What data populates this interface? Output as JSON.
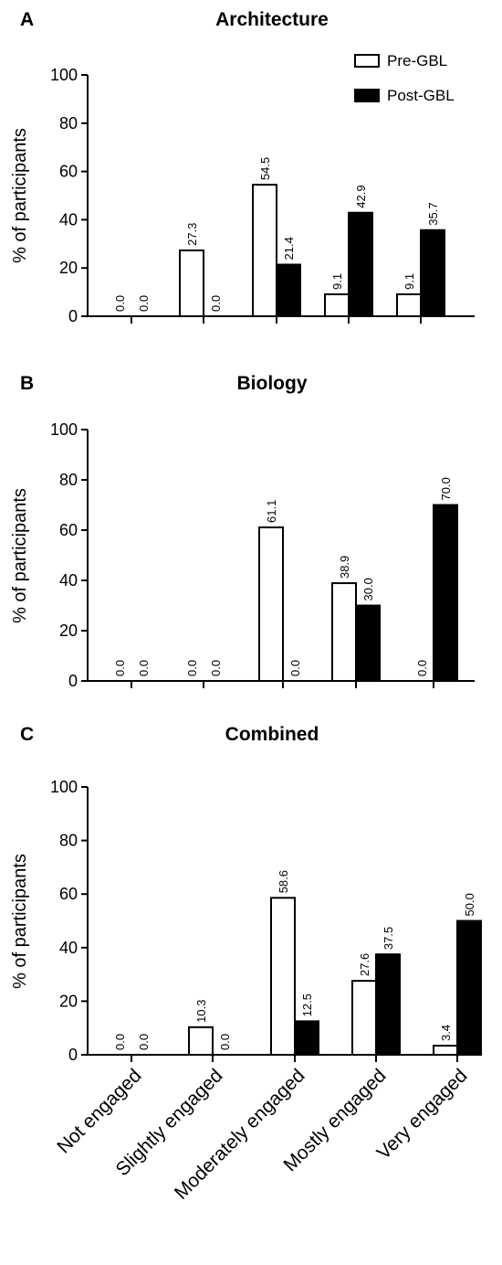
{
  "legend": {
    "series": [
      "Pre-GBL",
      "Post-GBL"
    ],
    "colors": [
      "#ffffff",
      "#000000"
    ],
    "placement": "top-right of panel A"
  },
  "chart_data": [
    {
      "panel": "A",
      "type": "bar",
      "title": "Architecture",
      "ylabel": "% of participants",
      "ylim": [
        0,
        100
      ],
      "yticks": [
        0,
        20,
        40,
        60,
        80,
        100
      ],
      "categories": [
        "Not engaged",
        "Slightly engaged",
        "Moderately engaged",
        "Mostly engaged",
        "Very engaged"
      ],
      "series": [
        {
          "name": "Pre-GBL",
          "values": [
            0.0,
            27.3,
            54.5,
            9.1,
            9.1
          ],
          "labels": [
            "0.0",
            "27.3",
            "54.5",
            "9.1",
            "9.1"
          ]
        },
        {
          "name": "Post-GBL",
          "values": [
            0.0,
            0.0,
            21.4,
            42.9,
            35.7
          ],
          "labels": [
            "0.0",
            "0.0",
            "21.4",
            "42.9",
            "35.7"
          ]
        }
      ]
    },
    {
      "panel": "B",
      "type": "bar",
      "title": "Biology",
      "ylabel": "% of participants",
      "ylim": [
        0,
        100
      ],
      "yticks": [
        0,
        20,
        40,
        60,
        80,
        100
      ],
      "categories": [
        "Not engaged",
        "Slightly engaged",
        "Moderately engaged",
        "Mostly engaged",
        "Very engaged"
      ],
      "series": [
        {
          "name": "Pre-GBL",
          "values": [
            0.0,
            0.0,
            61.1,
            38.9,
            0.0
          ],
          "labels": [
            "0.0",
            "0.0",
            "61.1",
            "38.9",
            "0.0"
          ]
        },
        {
          "name": "Post-GBL",
          "values": [
            0.0,
            0.0,
            0.0,
            30.0,
            70.0
          ],
          "labels": [
            "0.0",
            "0.0",
            "0.0",
            "30.0",
            "70.0"
          ]
        }
      ]
    },
    {
      "panel": "C",
      "type": "bar",
      "title": "Combined",
      "ylabel": "% of participants",
      "ylim": [
        0,
        100
      ],
      "yticks": [
        0,
        20,
        40,
        60,
        80,
        100
      ],
      "categories": [
        "Not engaged",
        "Slightly engaged",
        "Moderately engaged",
        "Mostly engaged",
        "Very engaged"
      ],
      "series": [
        {
          "name": "Pre-GBL",
          "values": [
            0.0,
            10.3,
            58.6,
            27.6,
            3.4
          ],
          "labels": [
            "0.0",
            "10.3",
            "58.6",
            "27.6",
            "3.4"
          ]
        },
        {
          "name": "Post-GBL",
          "values": [
            0.0,
            0.0,
            12.5,
            37.5,
            50.0
          ],
          "labels": [
            "0.0",
            "0.0",
            "12.5",
            "37.5",
            "50.0"
          ]
        }
      ],
      "show_category_labels": true
    }
  ]
}
